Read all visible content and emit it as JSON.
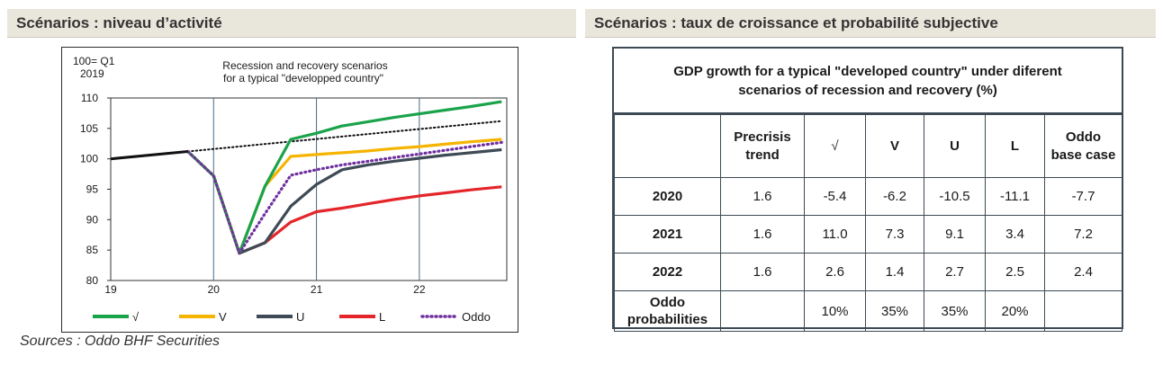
{
  "left_header": "Scénarios : niveau d’activité",
  "right_header": "Scénarios : taux de croissance et probabilité subjective",
  "source_note": "Sources : Oddo BHF Securities",
  "chart_data": {
    "type": "line",
    "title_lines": [
      "Recession and recovery scenarios",
      "for a typical \"developped country\""
    ],
    "ylabel_lines": [
      "100= Q1",
      "2019"
    ],
    "xlabel": "",
    "ylim": [
      80,
      110
    ],
    "y_ticks": [
      80,
      85,
      90,
      95,
      100,
      105,
      110
    ],
    "xlim": [
      19,
      22.85
    ],
    "x_ticks": [
      19,
      20,
      21,
      22
    ],
    "x_tick_labels": [
      "19",
      "20",
      "21",
      "22"
    ],
    "grid": "vertical",
    "legend_position": "bottom",
    "history": {
      "color": "#111111",
      "points": [
        [
          19.0,
          100.0
        ],
        [
          19.75,
          101.2
        ]
      ]
    },
    "trend": {
      "color": "#111111",
      "style": "dotted",
      "points": [
        [
          19.75,
          101.2
        ],
        [
          22.8,
          106.2
        ]
      ]
    },
    "series": [
      {
        "name": "√",
        "color": "#1aa34a",
        "style": "solid",
        "points": [
          [
            19.75,
            101.2
          ],
          [
            20.0,
            97.2
          ],
          [
            20.25,
            84.5
          ],
          [
            20.5,
            95.5
          ],
          [
            20.75,
            103.2
          ],
          [
            21.0,
            104.2
          ],
          [
            21.25,
            105.4
          ],
          [
            21.5,
            106.1
          ],
          [
            21.75,
            106.8
          ],
          [
            22.0,
            107.4
          ],
          [
            22.25,
            108.0
          ],
          [
            22.5,
            108.6
          ],
          [
            22.8,
            109.4
          ]
        ]
      },
      {
        "name": "V",
        "color": "#f5b400",
        "style": "solid",
        "points": [
          [
            19.75,
            101.2
          ],
          [
            20.0,
            97.2
          ],
          [
            20.25,
            84.5
          ],
          [
            20.5,
            95.5
          ],
          [
            20.75,
            100.4
          ],
          [
            21.0,
            100.7
          ],
          [
            21.25,
            101.0
          ],
          [
            21.5,
            101.3
          ],
          [
            21.75,
            101.7
          ],
          [
            22.0,
            102.0
          ],
          [
            22.25,
            102.4
          ],
          [
            22.5,
            102.8
          ],
          [
            22.8,
            103.2
          ]
        ]
      },
      {
        "name": "U",
        "color": "#3e4a55",
        "style": "solid",
        "points": [
          [
            19.75,
            101.2
          ],
          [
            20.0,
            97.2
          ],
          [
            20.25,
            84.5
          ],
          [
            20.5,
            86.2
          ],
          [
            20.75,
            92.2
          ],
          [
            21.0,
            95.8
          ],
          [
            21.25,
            98.2
          ],
          [
            21.5,
            99.0
          ],
          [
            21.75,
            99.6
          ],
          [
            22.0,
            100.1
          ],
          [
            22.25,
            100.6
          ],
          [
            22.5,
            101.0
          ],
          [
            22.8,
            101.5
          ]
        ]
      },
      {
        "name": "L",
        "color": "#e4262b",
        "style": "solid",
        "points": [
          [
            19.75,
            101.2
          ],
          [
            20.0,
            97.2
          ],
          [
            20.25,
            84.5
          ],
          [
            20.5,
            86.2
          ],
          [
            20.75,
            89.6
          ],
          [
            21.0,
            91.3
          ],
          [
            21.25,
            91.9
          ],
          [
            21.5,
            92.6
          ],
          [
            21.75,
            93.3
          ],
          [
            22.0,
            93.9
          ],
          [
            22.25,
            94.4
          ],
          [
            22.5,
            94.9
          ],
          [
            22.8,
            95.4
          ]
        ]
      },
      {
        "name": "Oddo",
        "color": "#7030a0",
        "style": "dotted",
        "points": [
          [
            19.75,
            101.2
          ],
          [
            20.0,
            97.2
          ],
          [
            20.25,
            84.5
          ],
          [
            20.5,
            91.0
          ],
          [
            20.75,
            97.3
          ],
          [
            21.0,
            98.2
          ],
          [
            21.25,
            99.0
          ],
          [
            21.5,
            99.6
          ],
          [
            21.75,
            100.2
          ],
          [
            22.0,
            100.8
          ],
          [
            22.25,
            101.4
          ],
          [
            22.5,
            102.0
          ],
          [
            22.8,
            102.7
          ]
        ]
      }
    ]
  },
  "table": {
    "title_lines": [
      "GDP growth for a typical \"developed country\" under diferent",
      "scenarios of recession and recovery (%)"
    ],
    "columns": [
      {
        "lines": [
          "Precrisis",
          "trend"
        ]
      },
      {
        "lines": [
          "√"
        ]
      },
      {
        "lines": [
          "V"
        ]
      },
      {
        "lines": [
          "U"
        ]
      },
      {
        "lines": [
          "L"
        ]
      },
      {
        "lines": [
          "Oddo",
          "base case"
        ]
      }
    ],
    "rows": [
      {
        "label": "2020",
        "cells": [
          "1.6",
          "-5.4",
          "-6.2",
          "-10.5",
          "-11.1",
          "-7.7"
        ]
      },
      {
        "label": "2021",
        "cells": [
          "1.6",
          "11.0",
          "7.3",
          "9.1",
          "3.4",
          "7.2"
        ]
      },
      {
        "label": "2022",
        "cells": [
          "1.6",
          "2.6",
          "1.4",
          "2.7",
          "2.5",
          "2.4"
        ]
      }
    ],
    "prob_row": {
      "label_lines": [
        "Oddo",
        "probabilities"
      ],
      "cells": [
        "",
        "10%",
        "35%",
        "35%",
        "20%",
        ""
      ]
    }
  }
}
